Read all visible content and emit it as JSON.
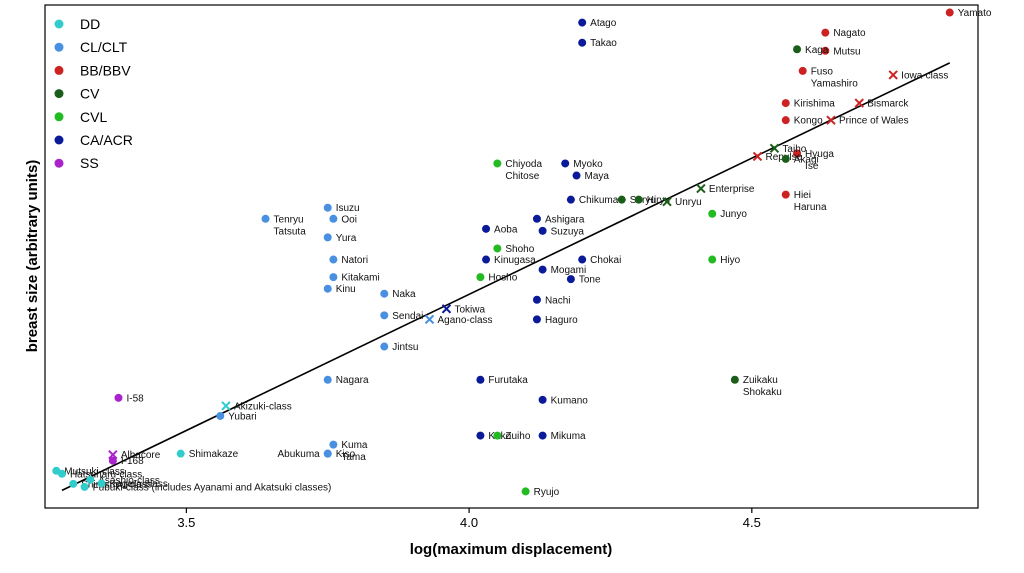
{
  "chart_data": {
    "type": "scatter",
    "xlabel": "log(maximum displacement)",
    "ylabel": "breast size (arbitrary units)",
    "xlim": [
      3.25,
      4.9
    ],
    "ylim": [
      0,
      100
    ],
    "xticks": [
      "3.5",
      "4.0",
      "4.5"
    ],
    "xtick_values": [
      3.5,
      4.0,
      4.5
    ],
    "grid": false,
    "legend_position": "top-left",
    "classes": [
      {
        "key": "DD",
        "name": "DD",
        "color": "#33cccc"
      },
      {
        "key": "CL",
        "name": "CL/CLT",
        "color": "#4a90e2"
      },
      {
        "key": "BB",
        "name": "BB/BBV",
        "color": "#cc2222"
      },
      {
        "key": "CV",
        "name": "CV",
        "color": "#1a5e1a"
      },
      {
        "key": "CVL",
        "name": "CVL",
        "color": "#22bb22"
      },
      {
        "key": "CA",
        "name": "CA/ACR",
        "color": "#0a1a99"
      },
      {
        "key": "SS",
        "name": "SS",
        "color": "#aa22cc"
      }
    ],
    "trendline": {
      "x": [
        3.28,
        4.85
      ],
      "y": [
        3.5,
        88.5
      ]
    },
    "points": [
      {
        "label": "Atago",
        "cls": "CA",
        "x": 4.2,
        "y": 96.5
      },
      {
        "label": "Takao",
        "cls": "CA",
        "x": 4.2,
        "y": 92.5
      },
      {
        "label": "Myoko",
        "cls": "CA",
        "x": 4.17,
        "y": 68.5
      },
      {
        "label": "Maya",
        "cls": "CA",
        "x": 4.19,
        "y": 66.1
      },
      {
        "label": "Chikuma",
        "cls": "CA",
        "x": 4.18,
        "y": 61.3
      },
      {
        "label": "Aoba",
        "cls": "CA",
        "x": 4.03,
        "y": 55.5
      },
      {
        "label": "Ashigara",
        "cls": "CA",
        "x": 4.12,
        "y": 57.5
      },
      {
        "label": "Suzuya",
        "cls": "CA",
        "x": 4.13,
        "y": 55.1
      },
      {
        "label": "Kinugasa",
        "cls": "CA",
        "x": 4.03,
        "y": 49.4
      },
      {
        "label": "Chokai",
        "cls": "CA",
        "x": 4.2,
        "y": 49.4
      },
      {
        "label": "Mogami",
        "cls": "CA",
        "x": 4.13,
        "y": 47.4
      },
      {
        "label": "Tone",
        "cls": "CA",
        "x": 4.18,
        "y": 45.5
      },
      {
        "label": "Nachi",
        "cls": "CA",
        "x": 4.12,
        "y": 41.4
      },
      {
        "label": "Haguro",
        "cls": "CA",
        "x": 4.12,
        "y": 37.5
      },
      {
        "label": "Furutaka",
        "cls": "CA",
        "x": 4.02,
        "y": 25.5
      },
      {
        "label": "Kumano",
        "cls": "CA",
        "x": 4.13,
        "y": 21.5
      },
      {
        "label": "Kako",
        "cls": "CA",
        "x": 4.02,
        "y": 14.4
      },
      {
        "label": "Mikuma",
        "cls": "CA",
        "x": 4.13,
        "y": 14.4
      },
      {
        "label": "Tokiwa",
        "cls": "CA",
        "x": 3.96,
        "y": 39.6,
        "marker": "x"
      },
      {
        "label": "Nagato",
        "cls": "BB",
        "x": 4.63,
        "y": 94.5
      },
      {
        "label": "Mutsu",
        "cls": "BB",
        "x": 4.63,
        "y": 90.9
      },
      {
        "label": "Yamato",
        "cls": "BB",
        "x": 4.85,
        "y": 98.5
      },
      {
        "label": "Fuso\nYamashiro",
        "cls": "BB",
        "x": 4.59,
        "y": 86.9
      },
      {
        "label": "Kirishima",
        "cls": "BB",
        "x": 4.56,
        "y": 80.5
      },
      {
        "label": "Kongo",
        "cls": "BB",
        "x": 4.56,
        "y": 77.1
      },
      {
        "label": "Hyuga\nIse",
        "cls": "BB",
        "x": 4.58,
        "y": 70.5
      },
      {
        "label": "Hiei\nHaruna",
        "cls": "BB",
        "x": 4.56,
        "y": 62.3
      },
      {
        "label": "Iowa-class",
        "cls": "BB",
        "x": 4.75,
        "y": 86.1,
        "marker": "x"
      },
      {
        "label": "Bismarck",
        "cls": "BB",
        "x": 4.69,
        "y": 80.5,
        "marker": "x"
      },
      {
        "label": "Prince of Wales",
        "cls": "BB",
        "x": 4.64,
        "y": 77.1,
        "marker": "x"
      },
      {
        "label": "Repulse",
        "cls": "BB",
        "x": 4.51,
        "y": 69.9,
        "marker": "x"
      },
      {
        "label": "Kaga",
        "cls": "CV",
        "x": 4.58,
        "y": 91.2
      },
      {
        "label": "Akagi",
        "cls": "CV",
        "x": 4.56,
        "y": 69.4
      },
      {
        "label": "Soryu",
        "cls": "CV",
        "x": 4.27,
        "y": 61.3
      },
      {
        "label": "Hiryu",
        "cls": "CV",
        "x": 4.3,
        "y": 61.3
      },
      {
        "label": "Zuikaku\nShokaku",
        "cls": "CV",
        "x": 4.47,
        "y": 25.5
      },
      {
        "label": "Taiho",
        "cls": "CV",
        "x": 4.54,
        "y": 71.5,
        "marker": "x"
      },
      {
        "label": "Enterprise",
        "cls": "CV",
        "x": 4.41,
        "y": 63.5,
        "marker": "x"
      },
      {
        "label": "Unryu",
        "cls": "CV",
        "x": 4.35,
        "y": 60.9,
        "marker": "x"
      },
      {
        "label": "Chiyoda\nChitose",
        "cls": "CVL",
        "x": 4.05,
        "y": 68.5
      },
      {
        "label": "Junyo",
        "cls": "CVL",
        "x": 4.43,
        "y": 58.5
      },
      {
        "label": "Shoho",
        "cls": "CVL",
        "x": 4.05,
        "y": 51.6
      },
      {
        "label": "Hosho",
        "cls": "CVL",
        "x": 4.02,
        "y": 45.9
      },
      {
        "label": "Hiyo",
        "cls": "CVL",
        "x": 4.43,
        "y": 49.4
      },
      {
        "label": "Zuiho",
        "cls": "CVL",
        "x": 4.05,
        "y": 14.4
      },
      {
        "label": "Ryujo",
        "cls": "CVL",
        "x": 4.1,
        "y": 3.3
      },
      {
        "label": "Tenryu\nTatsuta",
        "cls": "CL",
        "x": 3.64,
        "y": 57.5
      },
      {
        "label": "Isuzu",
        "cls": "CL",
        "x": 3.75,
        "y": 59.7
      },
      {
        "label": "Ooi",
        "cls": "CL",
        "x": 3.76,
        "y": 57.5
      },
      {
        "label": "Yura",
        "cls": "CL",
        "x": 3.75,
        "y": 53.8
      },
      {
        "label": "Natori",
        "cls": "CL",
        "x": 3.76,
        "y": 49.4
      },
      {
        "label": "Kitakami",
        "cls": "CL",
        "x": 3.76,
        "y": 45.9
      },
      {
        "label": "Kinu",
        "cls": "CL",
        "x": 3.75,
        "y": 43.6
      },
      {
        "label": "Naka",
        "cls": "CL",
        "x": 3.85,
        "y": 42.6
      },
      {
        "label": "Sendai",
        "cls": "CL",
        "x": 3.85,
        "y": 38.3
      },
      {
        "label": "Jintsu",
        "cls": "CL",
        "x": 3.85,
        "y": 32.1
      },
      {
        "label": "Nagara",
        "cls": "CL",
        "x": 3.75,
        "y": 25.5
      },
      {
        "label": "Yubari",
        "cls": "CL",
        "x": 3.56,
        "y": 18.3
      },
      {
        "label": "Kuma\nTama",
        "cls": "CL",
        "x": 3.76,
        "y": 12.6
      },
      {
        "label": "Kiso",
        "cls": "CL",
        "x": 3.75,
        "y": 10.8
      },
      {
        "label": "Abukuma",
        "cls": "CL",
        "x": 3.75,
        "y": 10.8,
        "labelLeft": true
      },
      {
        "label": "Agano-class",
        "cls": "CL",
        "x": 3.93,
        "y": 37.5,
        "marker": "x"
      },
      {
        "label": "Shimakaze",
        "cls": "DD",
        "x": 3.49,
        "y": 10.8
      },
      {
        "label": "Mutsuki-class",
        "cls": "DD",
        "x": 3.27,
        "y": 7.4
      },
      {
        "label": "Hatsuharu-class",
        "cls": "DD",
        "x": 3.28,
        "y": 6.8
      },
      {
        "label": "Shirasuyu-class",
        "cls": "DD",
        "x": 3.3,
        "y": 4.8
      },
      {
        "label": "Fubuki-class (includes Ayanami and Akatsuki classes)",
        "cls": "DD",
        "x": 3.32,
        "y": 4.2
      },
      {
        "label": "Asashio-class",
        "cls": "DD",
        "x": 3.33,
        "y": 5.6
      },
      {
        "label": "Kagero-class",
        "cls": "DD",
        "x": 3.35,
        "y": 4.9
      },
      {
        "label": "Akizuki-class",
        "cls": "DD",
        "x": 3.57,
        "y": 20.3,
        "marker": "x"
      },
      {
        "label": "I-58",
        "cls": "SS",
        "x": 3.38,
        "y": 21.9
      },
      {
        "label": "I-168",
        "cls": "SS",
        "x": 3.37,
        "y": 9.4
      },
      {
        "label": "Albacore",
        "cls": "SS",
        "x": 3.37,
        "y": 10.6,
        "marker": "x"
      }
    ]
  }
}
